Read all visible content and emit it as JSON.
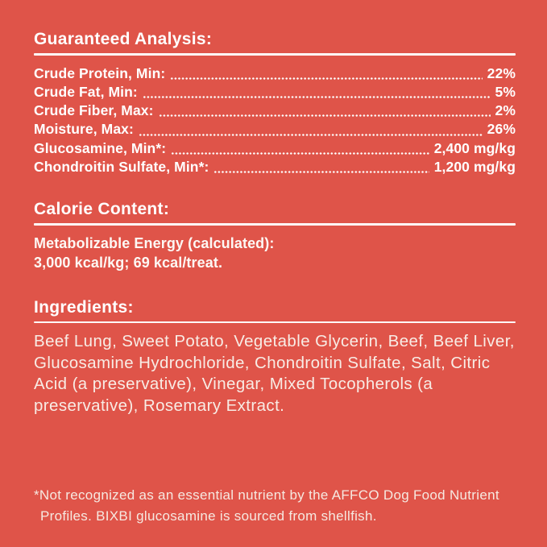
{
  "colors": {
    "background": "#DF5449",
    "heading_text": "#FFFFFF",
    "body_text": "#F8ECE5"
  },
  "guaranteed_analysis": {
    "heading": "Guaranteed Analysis:",
    "rows": [
      {
        "label": "Crude Protein, Min:",
        "value": "22%"
      },
      {
        "label": "Crude Fat, Min:",
        "value": "5%"
      },
      {
        "label": "Crude Fiber, Max:",
        "value": "2%"
      },
      {
        "label": "Moisture, Max:",
        "value": "26%"
      },
      {
        "label": "Glucosamine, Min*:",
        "value": "2,400 mg/kg"
      },
      {
        "label": "Chondroitin Sulfate, Min*:",
        "value": "1,200 mg/kg"
      }
    ]
  },
  "calorie_content": {
    "heading": "Calorie Content:",
    "line1": "Metabolizable Energy (calculated):",
    "line2": "3,000 kcal/kg; 69 kcal/treat."
  },
  "ingredients": {
    "heading": "Ingredients:",
    "body": "Beef Lung, Sweet Potato, Vegetable Glycerin, Beef, Beef Liver, Glucosamine Hydrochloride, Chondroitin Sulfate, Salt, Citric Acid (a preservative), Vinegar, Mixed Tocopherols (a preservative), Rosemary Extract."
  },
  "footnote": {
    "text": "*Not recognized as an essential nutrient by the AFFCO Dog Food Nutrient Profiles. BIXBI glucosamine is sourced from shellfish."
  }
}
